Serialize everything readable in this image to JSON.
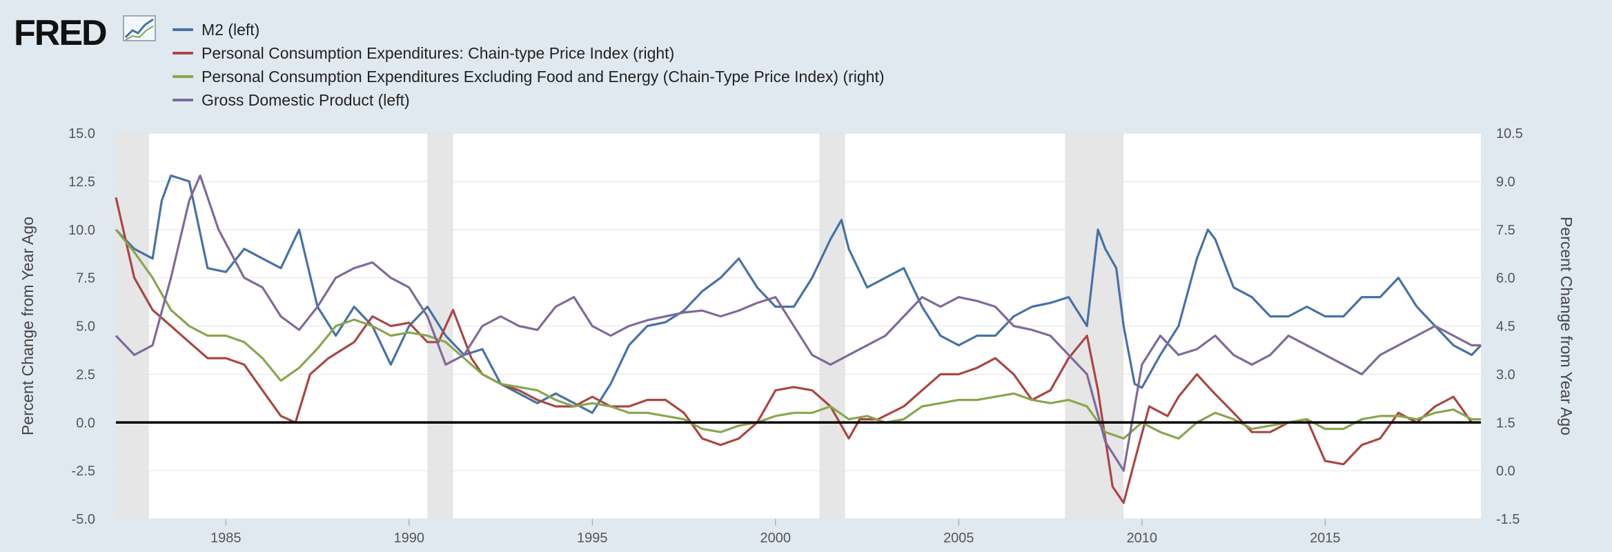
{
  "logo": {
    "text": "FRED"
  },
  "legend": [
    {
      "label": "M2 (left)",
      "color": "#4572a7"
    },
    {
      "label": "Personal Consumption Expenditures: Chain-type Price Index (right)",
      "color": "#aa4643"
    },
    {
      "label": "Personal Consumption Expenditures Excluding Food and Energy (Chain-Type Price Index) (right)",
      "color": "#89a54e"
    },
    {
      "label": "Gross Domestic Product (left)",
      "color": "#80699b"
    }
  ],
  "chart_data": {
    "type": "line",
    "xlim": [
      1982.0,
      2019.25
    ],
    "left_axis": {
      "title": "Percent Change from Year Ago",
      "ylim": [
        -5,
        15
      ],
      "ticks": [
        "15.0",
        "12.5",
        "10.0",
        "7.5",
        "5.0",
        "2.5",
        "0.0",
        "-2.5",
        "-5.0"
      ]
    },
    "right_axis": {
      "title": "Percent Change from Year Ago",
      "ylim": [
        -1.5,
        10.5
      ],
      "ticks": [
        "10.5",
        "9.0",
        "7.5",
        "6.0",
        "4.5",
        "3.0",
        "1.5",
        "0.0",
        "-1.5"
      ]
    },
    "x_ticks": [
      "1985",
      "1990",
      "1995",
      "2000",
      "2005",
      "2010",
      "2015"
    ],
    "recessions": [
      [
        1982.0,
        1982.9
      ],
      [
        1990.5,
        1991.2
      ],
      [
        2001.2,
        2001.9
      ],
      [
        2007.9,
        2009.5
      ]
    ],
    "zero_line_left": 0,
    "series": [
      {
        "name": "M2 (left)",
        "axis": "left",
        "color": "#4572a7",
        "x": [
          1982.0,
          1982.5,
          1983.0,
          1983.25,
          1983.5,
          1984.0,
          1984.5,
          1985.0,
          1985.5,
          1986.0,
          1986.5,
          1987.0,
          1987.5,
          1988.0,
          1988.5,
          1989.0,
          1989.5,
          1990.0,
          1990.5,
          1991.0,
          1991.5,
          1992.0,
          1992.5,
          1993.0,
          1993.5,
          1994.0,
          1994.5,
          1995.0,
          1995.5,
          1996.0,
          1996.5,
          1997.0,
          1997.5,
          1998.0,
          1998.5,
          1999.0,
          1999.5,
          2000.0,
          2000.5,
          2001.0,
          2001.5,
          2001.8,
          2002.0,
          2002.5,
          2003.0,
          2003.5,
          2004.0,
          2004.5,
          2005.0,
          2005.5,
          2006.0,
          2006.5,
          2007.0,
          2007.5,
          2008.0,
          2008.5,
          2008.8,
          2009.0,
          2009.3,
          2009.5,
          2009.8,
          2010.0,
          2010.5,
          2011.0,
          2011.5,
          2011.8,
          2012.0,
          2012.5,
          2013.0,
          2013.5,
          2014.0,
          2014.5,
          2015.0,
          2015.5,
          2016.0,
          2016.5,
          2017.0,
          2017.5,
          2018.0,
          2018.5,
          2019.0,
          2019.25
        ],
        "y": [
          10.0,
          9.0,
          8.5,
          11.5,
          12.8,
          12.5,
          8.0,
          7.8,
          9.0,
          8.5,
          8.0,
          10.0,
          6.0,
          4.5,
          6.0,
          5.0,
          3.0,
          5.0,
          6.0,
          4.5,
          3.5,
          3.8,
          2.0,
          1.5,
          1.0,
          1.5,
          1.0,
          0.5,
          2.0,
          4.0,
          5.0,
          5.2,
          5.8,
          6.8,
          7.5,
          8.5,
          7.0,
          6.0,
          6.0,
          7.5,
          9.5,
          10.5,
          9.0,
          7.0,
          7.5,
          8.0,
          6.0,
          4.5,
          4.0,
          4.5,
          4.5,
          5.5,
          6.0,
          6.2,
          6.5,
          5.0,
          10.0,
          9.0,
          8.0,
          5.0,
          2.0,
          1.8,
          3.5,
          5.0,
          8.5,
          10.0,
          9.5,
          7.0,
          6.5,
          5.5,
          5.5,
          6.0,
          5.5,
          5.5,
          6.5,
          6.5,
          7.5,
          6.0,
          5.0,
          4.0,
          3.5,
          4.0
        ]
      },
      {
        "name": "Personal Consumption Expenditures: Chain-type Price Index (right)",
        "axis": "right",
        "color": "#aa4643",
        "x": [
          1982.0,
          1982.5,
          1983.0,
          1983.5,
          1984.0,
          1984.5,
          1985.0,
          1985.5,
          1986.0,
          1986.5,
          1986.9,
          1987.3,
          1987.8,
          1988.5,
          1989.0,
          1989.5,
          1990.0,
          1990.5,
          1990.8,
          1991.2,
          1991.7,
          1992.0,
          1992.5,
          1993.0,
          1993.5,
          1994.0,
          1994.5,
          1995.0,
          1995.5,
          1996.0,
          1996.5,
          1997.0,
          1997.5,
          1998.0,
          1998.5,
          1999.0,
          1999.5,
          2000.0,
          2000.5,
          2001.0,
          2001.5,
          2002.0,
          2002.3,
          2002.8,
          2003.5,
          2004.0,
          2004.5,
          2005.0,
          2005.5,
          2006.0,
          2006.5,
          2007.0,
          2007.5,
          2008.0,
          2008.5,
          2008.8,
          2009.2,
          2009.5,
          2009.8,
          2010.2,
          2010.7,
          2011.0,
          2011.5,
          2011.9,
          2012.5,
          2013.0,
          2013.5,
          2014.0,
          2014.5,
          2015.0,
          2015.5,
          2016.0,
          2016.5,
          2017.0,
          2017.5,
          2018.0,
          2018.5,
          2019.0,
          2019.25
        ],
        "y": [
          8.5,
          6.0,
          5.0,
          4.5,
          4.0,
          3.5,
          3.5,
          3.3,
          2.5,
          1.7,
          1.5,
          3.0,
          3.5,
          4.0,
          4.8,
          4.5,
          4.6,
          4.0,
          4.0,
          5.0,
          3.5,
          3.0,
          2.7,
          2.5,
          2.2,
          2.0,
          2.0,
          2.3,
          2.0,
          2.0,
          2.2,
          2.2,
          1.8,
          1.0,
          0.8,
          1.0,
          1.5,
          2.5,
          2.6,
          2.5,
          2.0,
          1.0,
          1.6,
          1.6,
          2.0,
          2.5,
          3.0,
          3.0,
          3.2,
          3.5,
          3.0,
          2.2,
          2.5,
          3.5,
          4.2,
          2.5,
          -0.5,
          -1.0,
          0.3,
          2.0,
          1.7,
          2.3,
          3.0,
          2.5,
          1.8,
          1.2,
          1.2,
          1.5,
          1.6,
          0.3,
          0.2,
          0.8,
          1.0,
          1.8,
          1.5,
          2.0,
          2.3,
          1.5,
          1.5
        ]
      },
      {
        "name": "Personal Consumption Expenditures Excluding Food and Energy (Chain-Type Price Index) (right)",
        "axis": "right",
        "color": "#89a54e",
        "x": [
          1982.0,
          1982.5,
          1983.0,
          1983.5,
          1984.0,
          1984.5,
          1985.0,
          1985.5,
          1986.0,
          1986.5,
          1987.0,
          1987.5,
          1988.0,
          1988.5,
          1989.0,
          1989.5,
          1990.0,
          1990.5,
          1991.0,
          1991.5,
          1992.0,
          1992.5,
          1993.0,
          1993.5,
          1994.0,
          1994.5,
          1995.0,
          1995.5,
          1996.0,
          1996.5,
          1997.0,
          1997.5,
          1998.0,
          1998.5,
          1999.0,
          1999.5,
          2000.0,
          2000.5,
          2001.0,
          2001.5,
          2002.0,
          2002.5,
          2003.0,
          2003.5,
          2004.0,
          2004.5,
          2005.0,
          2005.5,
          2006.0,
          2006.5,
          2007.0,
          2007.5,
          2008.0,
          2008.5,
          2009.0,
          2009.5,
          2010.0,
          2010.5,
          2011.0,
          2011.5,
          2012.0,
          2012.5,
          2013.0,
          2013.5,
          2014.0,
          2014.5,
          2015.0,
          2015.5,
          2016.0,
          2016.5,
          2017.0,
          2017.5,
          2018.0,
          2018.5,
          2019.0,
          2019.25
        ],
        "y": [
          7.5,
          6.8,
          6.0,
          5.0,
          4.5,
          4.2,
          4.2,
          4.0,
          3.5,
          2.8,
          3.2,
          3.8,
          4.5,
          4.7,
          4.5,
          4.2,
          4.3,
          4.2,
          4.0,
          3.5,
          3.0,
          2.7,
          2.6,
          2.5,
          2.2,
          2.0,
          2.1,
          2.0,
          1.8,
          1.8,
          1.7,
          1.6,
          1.3,
          1.2,
          1.4,
          1.5,
          1.7,
          1.8,
          1.8,
          2.0,
          1.6,
          1.7,
          1.5,
          1.6,
          2.0,
          2.1,
          2.2,
          2.2,
          2.3,
          2.4,
          2.2,
          2.1,
          2.2,
          2.0,
          1.2,
          1.0,
          1.5,
          1.2,
          1.0,
          1.5,
          1.8,
          1.6,
          1.3,
          1.4,
          1.5,
          1.6,
          1.3,
          1.3,
          1.6,
          1.7,
          1.7,
          1.6,
          1.8,
          1.9,
          1.6,
          1.6
        ]
      },
      {
        "name": "Gross Domestic Product (left)",
        "axis": "left",
        "color": "#80699b",
        "x": [
          1982.0,
          1982.5,
          1983.0,
          1983.5,
          1984.0,
          1984.3,
          1984.8,
          1985.5,
          1986.0,
          1986.5,
          1987.0,
          1987.5,
          1988.0,
          1988.5,
          1989.0,
          1989.5,
          1990.0,
          1990.5,
          1991.0,
          1991.5,
          1992.0,
          1992.5,
          1993.0,
          1993.5,
          1994.0,
          1994.5,
          1995.0,
          1995.5,
          1996.0,
          1996.5,
          1997.0,
          1997.5,
          1998.0,
          1998.5,
          1999.0,
          1999.5,
          2000.0,
          2000.5,
          2001.0,
          2001.5,
          2002.0,
          2002.5,
          2003.0,
          2003.5,
          2004.0,
          2004.5,
          2005.0,
          2005.5,
          2006.0,
          2006.5,
          2007.0,
          2007.5,
          2008.0,
          2008.5,
          2009.0,
          2009.5,
          2010.0,
          2010.5,
          2011.0,
          2011.5,
          2012.0,
          2012.5,
          2013.0,
          2013.5,
          2014.0,
          2014.5,
          2015.0,
          2015.5,
          2016.0,
          2016.5,
          2017.0,
          2017.5,
          2018.0,
          2018.5,
          2019.0,
          2019.25
        ],
        "y": [
          4.5,
          3.5,
          4.0,
          7.5,
          11.5,
          12.8,
          10.0,
          7.5,
          7.0,
          5.5,
          4.8,
          6.0,
          7.5,
          8.0,
          8.3,
          7.5,
          7.0,
          5.5,
          3.0,
          3.5,
          5.0,
          5.5,
          5.0,
          4.8,
          6.0,
          6.5,
          5.0,
          4.5,
          5.0,
          5.3,
          5.5,
          5.7,
          5.8,
          5.5,
          5.8,
          6.2,
          6.5,
          5.0,
          3.5,
          3.0,
          3.5,
          4.0,
          4.5,
          5.5,
          6.5,
          6.0,
          6.5,
          6.3,
          6.0,
          5.0,
          4.8,
          4.5,
          3.5,
          2.5,
          -1.0,
          -2.5,
          3.0,
          4.5,
          3.5,
          3.8,
          4.5,
          3.5,
          3.0,
          3.5,
          4.5,
          4.0,
          3.5,
          3.0,
          2.5,
          3.5,
          4.0,
          4.5,
          5.0,
          4.5,
          4.0,
          4.0
        ]
      }
    ]
  }
}
